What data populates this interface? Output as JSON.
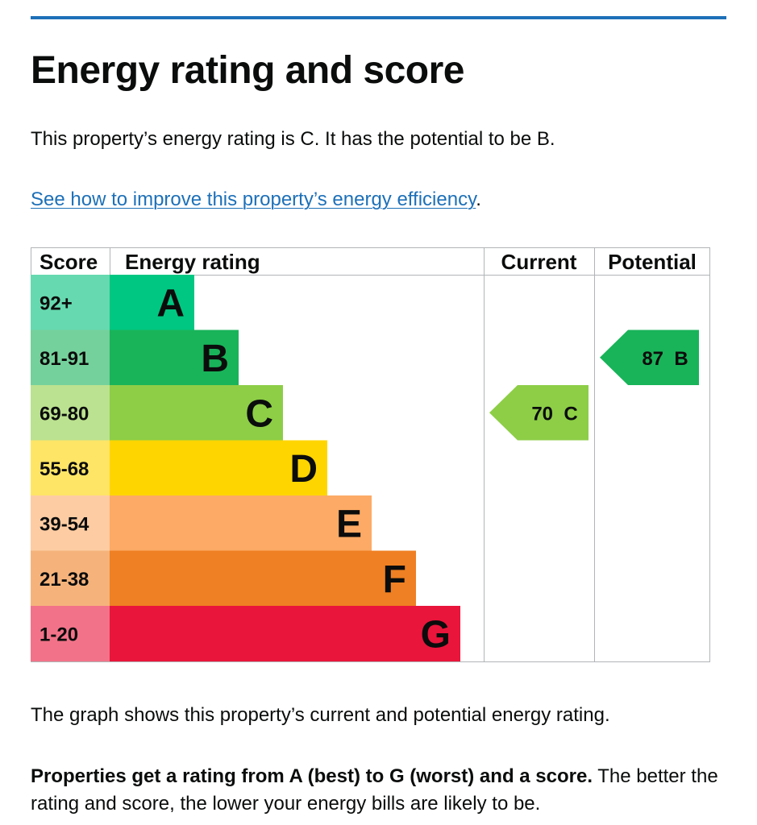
{
  "colors": {
    "accent_rule": "#1d70b8",
    "link": "#1d70b8",
    "grid": "#b1b4b6",
    "text": "#0b0c0c"
  },
  "page": {
    "title": "Energy rating and score",
    "intro": "This property’s energy rating is C. It has the potential to be B.",
    "improve_link": "See how to improve this property’s energy efficiency",
    "improve_link_suffix": ".",
    "graph_note": "The graph shows this property’s current and potential energy rating.",
    "ratings_note_bold": "Properties get a rating from A (best) to G (worst) and a score.",
    "ratings_note_rest": " The better the rating and score, the lower your energy bills are likely to be."
  },
  "chart_data": {
    "type": "table",
    "headers": {
      "score": "Score",
      "rating": "Energy rating",
      "current": "Current",
      "potential": "Potential"
    },
    "bands": [
      {
        "letter": "A",
        "range": "92+",
        "color": "#00c781",
        "light": "#66d9b0"
      },
      {
        "letter": "B",
        "range": "81-91",
        "color": "#19b459",
        "light": "#75d19b"
      },
      {
        "letter": "C",
        "range": "69-80",
        "color": "#8dce46",
        "light": "#bbe290"
      },
      {
        "letter": "D",
        "range": "55-68",
        "color": "#ffd500",
        "light": "#ffe566"
      },
      {
        "letter": "E",
        "range": "39-54",
        "color": "#fcaa65",
        "light": "#fdcca3"
      },
      {
        "letter": "F",
        "range": "21-38",
        "color": "#ef8023",
        "light": "#f5b37b"
      },
      {
        "letter": "G",
        "range": "1-20",
        "color": "#e9153b",
        "light": "#f27389"
      }
    ],
    "current": {
      "score": 70,
      "band": "C",
      "label": "70  C"
    },
    "potential": {
      "score": 87,
      "band": "B",
      "label": "87  B"
    }
  }
}
